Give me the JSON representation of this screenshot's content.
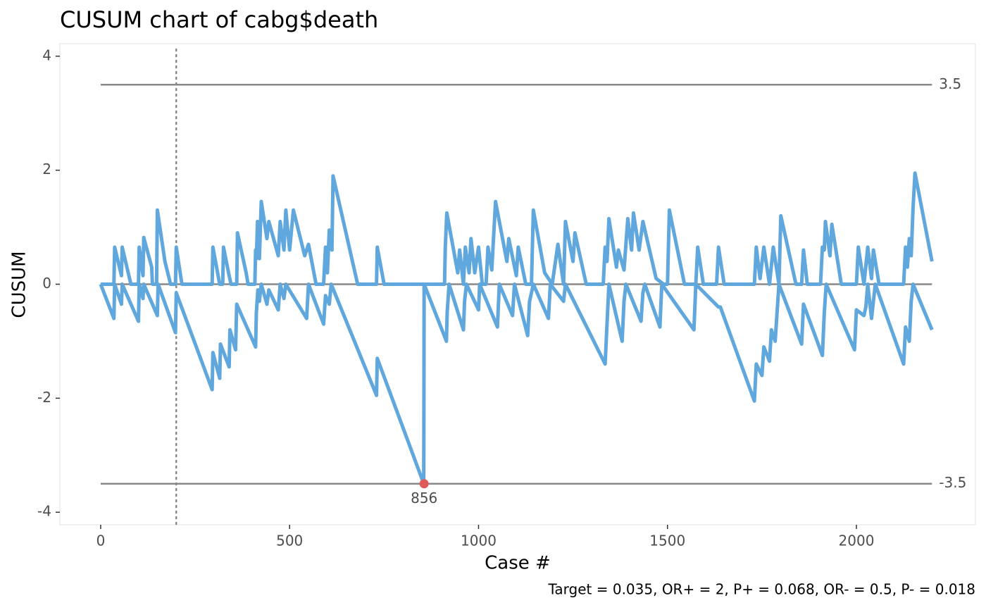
{
  "chart_data": {
    "type": "line",
    "title": "CUSUM chart of cabg$death",
    "x_label": "Case #",
    "y_label": "CUSUM",
    "caption": "Target = 0.035, OR+ = 2, P+ = 0.068, OR- = 0.5, P- = 0.018",
    "xlim": [
      -108,
      2315
    ],
    "ylim": [
      -4.22,
      4.22
    ],
    "xticks": [
      0,
      500,
      1000,
      1500,
      2000
    ],
    "yticks": [
      -4,
      -2,
      0,
      2,
      4
    ],
    "control_limits": [
      3.5,
      -3.5
    ],
    "limit_color": "#888888",
    "center_line": 0,
    "vline": 200,
    "signals": [
      {
        "x": 856,
        "y": -3.5,
        "color": "#e05a5a"
      }
    ],
    "series": [
      {
        "color": "#5fa7dc",
        "x": [
          0,
          35,
          37,
          55,
          57,
          80,
          100,
          102,
          112,
          114,
          135,
          137,
          148,
          150,
          170,
          185,
          198,
          200,
          215,
          295,
          297,
          315,
          323,
          325,
          340,
          345,
          360,
          362,
          385,
          390,
          408,
          410,
          412,
          415,
          420,
          425,
          440,
          445,
          470,
          475,
          485,
          490,
          500,
          510,
          540,
          550,
          570,
          590,
          595,
          600,
          605,
          612,
          615,
          680,
          730,
          732,
          750,
          910,
          912,
          916,
          945,
          950,
          960,
          965,
          975,
          980,
          990,
          1000,
          1010,
          1020,
          1025,
          1035,
          1045,
          1075,
          1080,
          1100,
          1105,
          1125,
          1140,
          1145,
          1175,
          1195,
          1210,
          1225,
          1230,
          1250,
          1255,
          1285,
          1330,
          1335,
          1340,
          1345,
          1365,
          1370,
          1385,
          1395,
          1405,
          1410,
          1425,
          1435,
          1470,
          1490,
          1500,
          1505,
          1545,
          1575,
          1580,
          1595,
          1630,
          1635,
          1650,
          1730,
          1735,
          1745,
          1755,
          1770,
          1780,
          1795,
          1800,
          1830,
          1840,
          1855,
          1860,
          1870,
          1905,
          1910,
          1915,
          1918,
          1930,
          1935,
          1960,
          2000,
          2005,
          2020,
          2030,
          2040,
          2045,
          2060,
          2125,
          2130,
          2135,
          2140,
          2145,
          2150,
          2155,
          2200
        ],
        "values": [
          0,
          0,
          0.65,
          0.15,
          0.65,
          0,
          0,
          0.65,
          0.15,
          0.82,
          0.3,
          0,
          0,
          1.3,
          0.4,
          0,
          0,
          0.65,
          0,
          0,
          0.65,
          0,
          0,
          0.65,
          0.15,
          0,
          0,
          0.9,
          0.2,
          0,
          0,
          0.6,
          0.45,
          1.1,
          0.45,
          1.45,
          0.8,
          1.1,
          0.5,
          1.1,
          0.6,
          1.3,
          0.6,
          1.3,
          0.5,
          0.7,
          0,
          0,
          0.65,
          0.2,
          0.95,
          0.6,
          1.9,
          0,
          0,
          0.65,
          0,
          0,
          0.65,
          1.25,
          0.2,
          0.6,
          0,
          0.65,
          0.2,
          0.8,
          0.2,
          0.65,
          0,
          0,
          0.65,
          0.25,
          1.45,
          0.4,
          0.8,
          0.15,
          0.65,
          0,
          0,
          1.3,
          0.2,
          0,
          0.7,
          0,
          1.1,
          0.4,
          0.9,
          0,
          0,
          0.65,
          0.4,
          1.15,
          0.3,
          0.6,
          0.25,
          1.15,
          0.6,
          1.25,
          0.6,
          1.1,
          0.1,
          0,
          0,
          1.3,
          0,
          0,
          0.65,
          0,
          0,
          0.65,
          0,
          0,
          0.65,
          0.1,
          0.65,
          0,
          0.65,
          0,
          1.2,
          0.3,
          0,
          0,
          0.6,
          0,
          0,
          0.65,
          0.6,
          1.1,
          0.5,
          1.05,
          0,
          0,
          0.65,
          0,
          0.65,
          0.1,
          0.6,
          0,
          0,
          0.65,
          0.3,
          0.8,
          0.5,
          1.35,
          1.95,
          0.4
        ]
      },
      {
        "color": "#5fa7dc",
        "x": [
          0,
          35,
          37,
          55,
          57,
          100,
          102,
          112,
          114,
          150,
          152,
          198,
          200,
          295,
          297,
          315,
          317,
          340,
          342,
          357,
          360,
          410,
          412,
          416,
          420,
          425,
          440,
          445,
          470,
          475,
          485,
          490,
          545,
          550,
          590,
          595,
          605,
          610,
          730,
          732,
          855,
          856,
          915,
          917,
          922,
          960,
          963,
          968,
          1000,
          1003,
          1050,
          1055,
          1090,
          1095,
          1130,
          1135,
          1145,
          1185,
          1190,
          1225,
          1230,
          1335,
          1340,
          1345,
          1380,
          1385,
          1390,
          1430,
          1435,
          1440,
          1480,
          1485,
          1570,
          1575,
          1635,
          1640,
          1730,
          1735,
          1750,
          1755,
          1770,
          1775,
          1785,
          1790,
          1795,
          1855,
          1860,
          1910,
          1915,
          1920,
          1995,
          2000,
          2020,
          2025,
          2030,
          2040,
          2045,
          2050,
          2125,
          2130,
          2140,
          2145,
          2150,
          2200
        ],
        "values": [
          0,
          -0.6,
          0,
          -0.35,
          0,
          -0.65,
          0,
          -0.25,
          0,
          -0.55,
          0,
          -0.85,
          -0.15,
          -1.85,
          -1.2,
          -1.65,
          -1.05,
          -1.45,
          -0.8,
          -1.15,
          -0.35,
          -1.1,
          -0.5,
          -0.1,
          -0.3,
          0,
          -0.35,
          -0.1,
          -0.45,
          0,
          -0.25,
          0,
          -0.6,
          0,
          -0.7,
          -0.2,
          -0.35,
          0,
          -1.95,
          -1.3,
          -3.5,
          0,
          -1.0,
          -0.5,
          0,
          -0.8,
          -0.3,
          0,
          -0.45,
          0,
          -0.75,
          0,
          -0.55,
          0,
          -0.9,
          -0.3,
          0,
          -0.6,
          0,
          -0.3,
          0,
          -1.4,
          -0.7,
          0,
          -1.0,
          -0.3,
          0,
          -0.65,
          -0.15,
          0,
          -0.75,
          0,
          -0.8,
          0,
          -0.4,
          -0.4,
          -2.05,
          -1.4,
          -1.6,
          -1.1,
          -1.35,
          -0.8,
          -1.0,
          -0.5,
          0,
          -1.05,
          -0.35,
          -1.25,
          -0.5,
          0,
          -1.15,
          -0.45,
          -0.55,
          -0.4,
          0,
          -0.6,
          -0.3,
          0,
          -1.4,
          -0.75,
          -1.0,
          -0.3,
          0,
          -0.8
        ]
      }
    ]
  }
}
